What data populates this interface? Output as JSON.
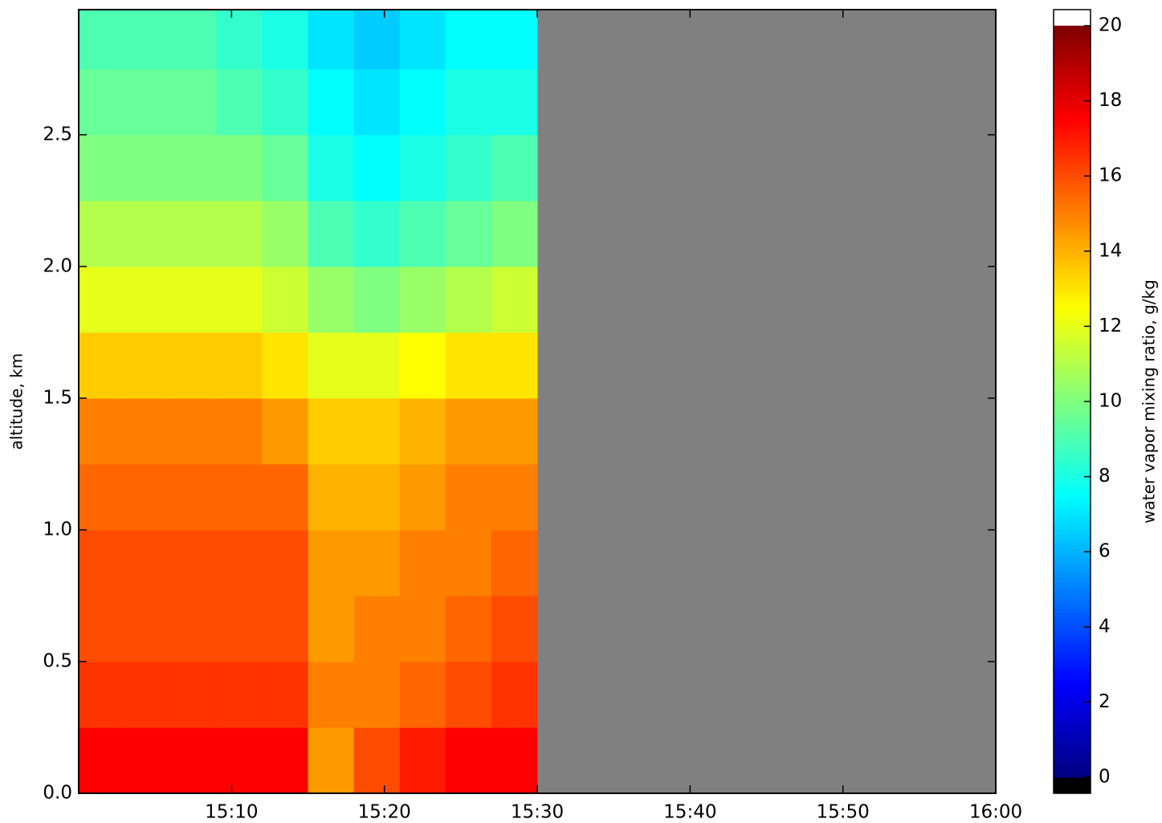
{
  "chart_data": {
    "type": "heatmap",
    "ylabel": "altitude, km",
    "colorbar_label": "water vapor mixing ratio, g/kg",
    "xlim": [
      "15:00",
      "16:00"
    ],
    "xticks": [
      "15:10",
      "15:20",
      "15:30",
      "15:40",
      "15:50",
      "16:00"
    ],
    "ylim": [
      0,
      2.975
    ],
    "yticks": [
      {
        "value": 0,
        "label": "0.0"
      },
      0.5,
      {
        "value": 1,
        "label": "1.0"
      },
      1.5,
      {
        "value": 2,
        "label": "2.0"
      },
      2.5
    ],
    "clim": [
      0,
      20
    ],
    "cticks": [
      0,
      2,
      4,
      6,
      8,
      10,
      12,
      14,
      16,
      18,
      20
    ],
    "colormap": "jet",
    "over_color": "#ffffff",
    "under_color": "#000000",
    "missing_color": "#808080",
    "x_bins": [
      "15:00",
      "15:03",
      "15:06",
      "15:09",
      "15:12",
      "15:15",
      "15:18",
      "15:21",
      "15:24",
      "15:27",
      "15:30",
      "15:33",
      "15:36",
      "15:39",
      "15:42",
      "15:45",
      "15:48",
      "15:51",
      "15:54",
      "15:57",
      "16:00"
    ],
    "y_bins": [
      0,
      0.25,
      0.5,
      0.75,
      1.0,
      1.25,
      1.5,
      1.75,
      2.0,
      2.25,
      2.5,
      2.75,
      2.975
    ],
    "z": [
      [
        17.5,
        17.5,
        17.5,
        17.5,
        17.5,
        14.5,
        16,
        17,
        17.5,
        17.5,
        null,
        null,
        null,
        null,
        null,
        null,
        null,
        null,
        null,
        null
      ],
      [
        16.5,
        16.5,
        16.5,
        16.5,
        16.5,
        15,
        15,
        15.5,
        16,
        16.5,
        null,
        null,
        null,
        null,
        null,
        null,
        null,
        null,
        null,
        null
      ],
      [
        16,
        16,
        16,
        16,
        16,
        14.5,
        15,
        15,
        15.5,
        16,
        null,
        null,
        null,
        null,
        null,
        null,
        null,
        null,
        null,
        null
      ],
      [
        16,
        16,
        16,
        16,
        16,
        14.5,
        14.5,
        15,
        15,
        15.5,
        null,
        null,
        null,
        null,
        null,
        null,
        null,
        null,
        null,
        null
      ],
      [
        15.5,
        15.5,
        15.5,
        15.5,
        15.5,
        14,
        14,
        14.5,
        15,
        15,
        null,
        null,
        null,
        null,
        null,
        null,
        null,
        null,
        null,
        null
      ],
      [
        15,
        15,
        15,
        15,
        14.5,
        13.5,
        13.5,
        14,
        14.5,
        14.5,
        null,
        null,
        null,
        null,
        null,
        null,
        null,
        null,
        null,
        null
      ],
      [
        13.5,
        13.5,
        13.5,
        13.5,
        13,
        12,
        12,
        12.5,
        13,
        13,
        null,
        null,
        null,
        null,
        null,
        null,
        null,
        null,
        null,
        null
      ],
      [
        12,
        12,
        12,
        12,
        11.5,
        10.5,
        10,
        10.5,
        11,
        11.5,
        null,
        null,
        null,
        null,
        null,
        null,
        null,
        null,
        null,
        null
      ],
      [
        11,
        11,
        11,
        11,
        10.5,
        9,
        8.5,
        9,
        9.5,
        10,
        null,
        null,
        null,
        null,
        null,
        null,
        null,
        null,
        null,
        null
      ],
      [
        10,
        10,
        10,
        10,
        9.5,
        8,
        7.5,
        8,
        8.5,
        9,
        null,
        null,
        null,
        null,
        null,
        null,
        null,
        null,
        null,
        null
      ],
      [
        9.5,
        9.5,
        9.5,
        9,
        8.5,
        7.5,
        7,
        7.5,
        8,
        8,
        null,
        null,
        null,
        null,
        null,
        null,
        null,
        null,
        null,
        null
      ],
      [
        9,
        9,
        9,
        8.5,
        8,
        7,
        6.5,
        7,
        7.5,
        7.5,
        null,
        null,
        null,
        null,
        null,
        null,
        null,
        null,
        null,
        null
      ]
    ]
  }
}
